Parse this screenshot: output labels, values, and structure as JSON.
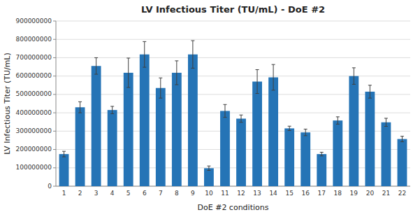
{
  "chart_data": {
    "type": "bar",
    "title": "LV Infectious Titer (TU/mL) - DoE #2",
    "xlabel": "DoE #2 conditions",
    "ylabel": "LV Infectious Titer (TU/mL)",
    "categories": [
      1,
      2,
      3,
      4,
      5,
      6,
      7,
      8,
      9,
      10,
      11,
      12,
      13,
      14,
      15,
      16,
      17,
      18,
      19,
      20,
      21,
      22
    ],
    "values": [
      175000000,
      430000000,
      655000000,
      415000000,
      618000000,
      718000000,
      535000000,
      618000000,
      718000000,
      98000000,
      410000000,
      368000000,
      570000000,
      593000000,
      315000000,
      293000000,
      175000000,
      358000000,
      600000000,
      515000000,
      348000000,
      257000000
    ],
    "errors": [
      15000000,
      30000000,
      45000000,
      20000000,
      80000000,
      70000000,
      55000000,
      65000000,
      75000000,
      12000000,
      35000000,
      20000000,
      65000000,
      70000000,
      12000000,
      18000000,
      10000000,
      20000000,
      45000000,
      35000000,
      22000000,
      15000000
    ],
    "color": "#2574B6",
    "ylim": [
      0,
      900000000
    ],
    "yticks": [
      0,
      100000000,
      200000000,
      300000000,
      400000000,
      500000000,
      600000000,
      700000000,
      800000000,
      900000000
    ],
    "grid": true
  }
}
